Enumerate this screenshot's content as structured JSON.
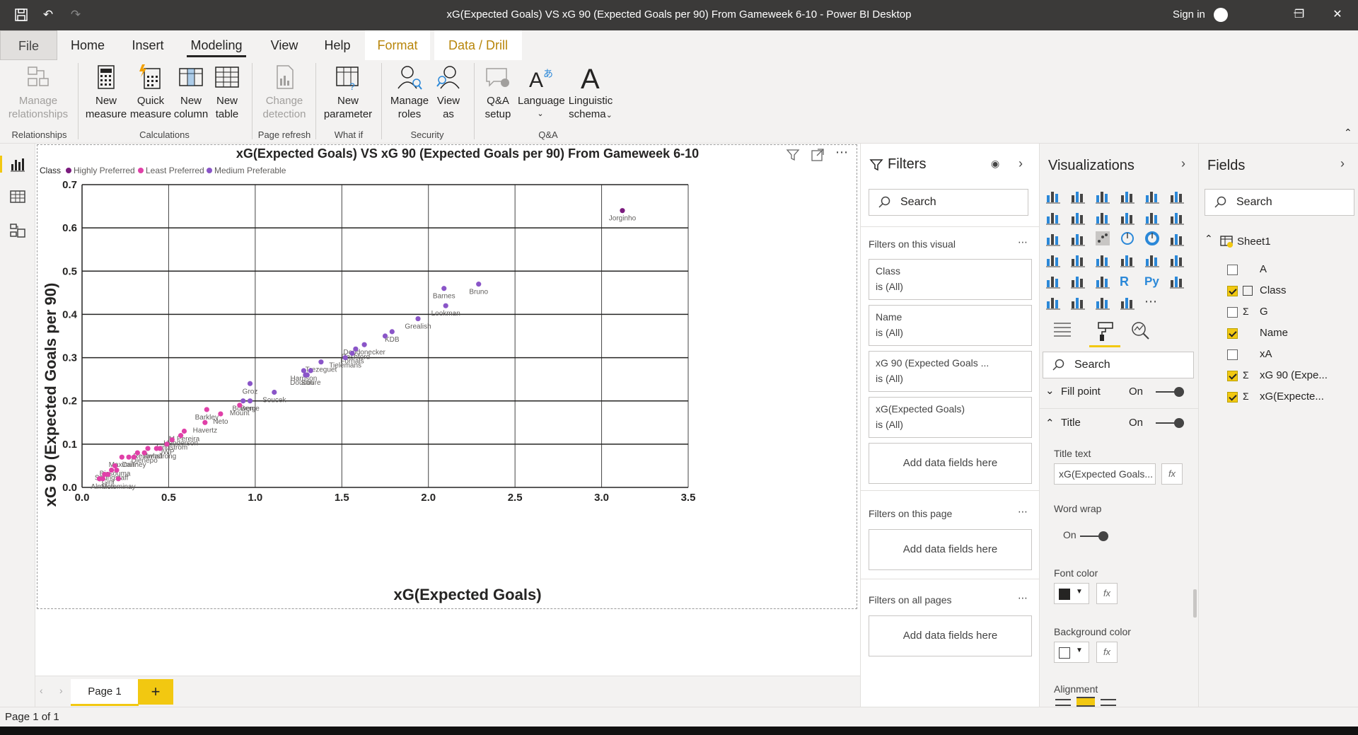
{
  "window": {
    "title": "xG(Expected Goals) VS xG 90 (Expected Goals per 90) From Gameweek 6-10 - Power BI Desktop",
    "sign_in": "Sign in"
  },
  "tabs": [
    {
      "label": "File"
    },
    {
      "label": "Home"
    },
    {
      "label": "Insert"
    },
    {
      "label": "Modeling"
    },
    {
      "label": "View"
    },
    {
      "label": "Help"
    },
    {
      "label": "Format"
    },
    {
      "label": "Data / Drill"
    }
  ],
  "ribbon": {
    "manage_relationships": "Manage relationships",
    "new_measure": "New measure",
    "quick_measure": "Quick measure",
    "new_column": "New column",
    "new_table": "New table",
    "change_detection": "Change detection",
    "new_parameter": "New parameter",
    "manage_roles": "Manage roles",
    "view_as": "View as",
    "qa_setup": "Q&A setup",
    "language": "Language",
    "linguistic_schema": "Linguistic schema",
    "groups": {
      "relationships": "Relationships",
      "calculations": "Calculations",
      "page_refresh": "Page refresh",
      "what_if": "What if",
      "security": "Security",
      "qa": "Q&A"
    }
  },
  "chart_data": {
    "type": "scatter",
    "title": "xG(Expected Goals) VS xG 90 (Expected Goals per 90) From Gameweek 6-10",
    "xlabel": "xG(Expected Goals)",
    "ylabel": "xG 90 (Expected Goals per 90)",
    "xlim": [
      0,
      3.5
    ],
    "ylim": [
      0,
      0.7
    ],
    "xticks": [
      "0.0",
      "0.5",
      "1.0",
      "1.5",
      "2.0",
      "2.5",
      "3.0",
      "3.5"
    ],
    "yticks": [
      "0.0",
      "0.1",
      "0.2",
      "0.3",
      "0.4",
      "0.5",
      "0.6",
      "0.7"
    ],
    "grid": true,
    "legend": {
      "title": "Class",
      "position": "top-left",
      "items": [
        {
          "label": "Highly Preferred",
          "color": "#7b1b7e"
        },
        {
          "label": "Least Preferred",
          "color": "#e040a8"
        },
        {
          "label": "Medium Preferable",
          "color": "#8a55c8"
        }
      ]
    },
    "series": [
      {
        "name": "Highly Preferred",
        "color": "#7b1b7e",
        "points": [
          {
            "label": "Jorginho",
            "x": 3.12,
            "y": 0.64
          }
        ]
      },
      {
        "name": "Medium Preferable",
        "color": "#8a55c8",
        "points": [
          {
            "label": "Bruno",
            "x": 2.29,
            "y": 0.47
          },
          {
            "label": "Barnes",
            "x": 2.09,
            "y": 0.46
          },
          {
            "label": "Lookman",
            "x": 2.1,
            "y": 0.42
          },
          {
            "label": "Grealish",
            "x": 1.94,
            "y": 0.39
          },
          {
            "label": "KDB",
            "x": 1.79,
            "y": 0.36
          },
          {
            "label": "",
            "x": 1.75,
            "y": 0.35
          },
          {
            "label": "Dendonecker",
            "x": 1.63,
            "y": 0.33
          },
          {
            "label": "Rashford",
            "x": 1.58,
            "y": 0.32
          },
          {
            "label": "Fornals",
            "x": 1.56,
            "y": 0.31
          },
          {
            "label": "Trezeguet",
            "x": 1.38,
            "y": 0.29
          },
          {
            "label": "Tielemans",
            "x": 1.52,
            "y": 0.3
          },
          {
            "label": "Harrison",
            "x": 1.28,
            "y": 0.27
          },
          {
            "label": "",
            "x": 1.32,
            "y": 0.27
          },
          {
            "label": "Doucoure",
            "x": 1.29,
            "y": 0.26
          },
          {
            "label": "Son",
            "x": 1.3,
            "y": 0.26
          },
          {
            "label": "Groz",
            "x": 0.97,
            "y": 0.24
          },
          {
            "label": "Berge",
            "x": 0.97,
            "y": 0.2
          },
          {
            "label": "Soucek",
            "x": 1.11,
            "y": 0.22
          },
          {
            "label": "Bowen",
            "x": 0.93,
            "y": 0.2
          }
        ]
      },
      {
        "name": "Least Preferred",
        "color": "#e040a8",
        "points": [
          {
            "label": "Mount",
            "x": 0.91,
            "y": 0.19
          },
          {
            "label": "Neto",
            "x": 0.8,
            "y": 0.17
          },
          {
            "label": "Barkley",
            "x": 0.72,
            "y": 0.18
          },
          {
            "label": "Havertz",
            "x": 0.71,
            "y": 0.15
          },
          {
            "label": "M Pereira",
            "x": 0.59,
            "y": 0.13
          },
          {
            "label": "Henderson",
            "x": 0.57,
            "y": 0.12
          },
          {
            "label": "Lindstrom",
            "x": 0.52,
            "y": 0.11
          },
          {
            "label": "JWP",
            "x": 0.49,
            "y": 0.1
          },
          {
            "label": "Armstrong",
            "x": 0.45,
            "y": 0.09
          },
          {
            "label": "",
            "x": 0.43,
            "y": 0.09
          },
          {
            "label": "Reidwlad",
            "x": 0.38,
            "y": 0.09
          },
          {
            "label": "Djenepo",
            "x": 0.36,
            "y": 0.08
          },
          {
            "label": "",
            "x": 0.32,
            "y": 0.08
          },
          {
            "label": "Cairney",
            "x": 0.3,
            "y": 0.07
          },
          {
            "label": "",
            "x": 0.27,
            "y": 0.07
          },
          {
            "label": "Maximin",
            "x": 0.23,
            "y": 0.07
          },
          {
            "label": "Bissouma",
            "x": 0.19,
            "y": 0.05
          },
          {
            "label": "",
            "x": 0.2,
            "y": 0.04
          },
          {
            "label": "Springstaff",
            "x": 0.17,
            "y": 0.04
          },
          {
            "label": "Gini",
            "x": 0.15,
            "y": 0.03
          },
          {
            "label": "",
            "x": 0.13,
            "y": 0.03
          },
          {
            "label": "Almiron",
            "x": 0.12,
            "y": 0.02
          },
          {
            "label": "",
            "x": 0.1,
            "y": 0.02
          },
          {
            "label": "Mctominay",
            "x": 0.21,
            "y": 0.02
          }
        ]
      }
    ]
  },
  "filters": {
    "title": "Filters",
    "search_placeholder": "Search",
    "on_visual": "Filters on this visual",
    "cards": [
      {
        "name": "Class",
        "value": "is (All)"
      },
      {
        "name": "Name",
        "value": "is (All)"
      },
      {
        "name": "xG 90 (Expected Goals ...",
        "value": "is (All)"
      },
      {
        "name": "xG(Expected Goals)",
        "value": "is (All)"
      }
    ],
    "add_data": "Add data fields here",
    "on_page": "Filters on this page",
    "on_all_pages": "Filters on all pages"
  },
  "visualizations": {
    "title": "Visualizations",
    "search_placeholder": "Search",
    "fill_point": "Fill point",
    "fill_point_state": "On",
    "title_section": "Title",
    "title_state": "On",
    "title_text_label": "Title text",
    "title_text_value": "xG(Expected Goals...",
    "word_wrap": "Word wrap",
    "word_wrap_state": "On",
    "font_color": "Font color",
    "background_color": "Background color",
    "alignment": "Alignment",
    "fx": "fx"
  },
  "fields": {
    "title": "Fields",
    "search_placeholder": "Search",
    "table": "Sheet1",
    "items": [
      {
        "label": "A",
        "checked": false,
        "sigma": false
      },
      {
        "label": "Class",
        "checked": true,
        "sigma": false
      },
      {
        "label": "G",
        "checked": false,
        "sigma": true
      },
      {
        "label": "Name",
        "checked": true,
        "sigma": false
      },
      {
        "label": "xA",
        "checked": false,
        "sigma": false
      },
      {
        "label": "xG 90 (Expe...",
        "checked": true,
        "sigma": true
      },
      {
        "label": "xG(Expecte...",
        "checked": true,
        "sigma": true
      }
    ]
  },
  "pages": {
    "tab": "Page 1",
    "add": "+",
    "status": "Page 1 of 1"
  }
}
